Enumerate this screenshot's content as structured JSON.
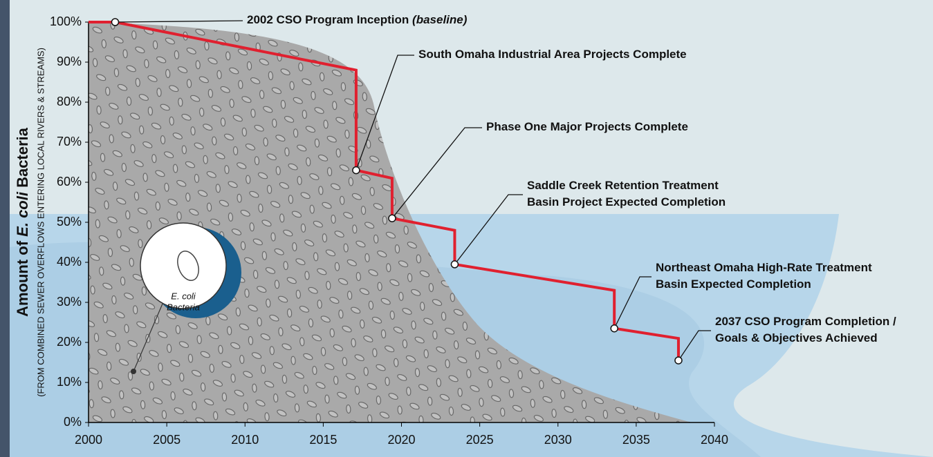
{
  "chart_data": {
    "type": "line",
    "y_label_parts": [
      "Amount of",
      "E. coli",
      "Bacteria"
    ],
    "y_sublabel": "(FROM COMBINED SEWER OVERFLOWS ENTERING LOCAL RIVERS & STREAMS)",
    "x": [
      2000,
      2001.7,
      2017.1,
      2017.1,
      2019.4,
      2019.4,
      2023.4,
      2023.4,
      2033.6,
      2033.6,
      2037.7,
      2037.7
    ],
    "values": [
      100,
      100,
      88,
      63,
      61,
      51,
      48,
      39.5,
      33,
      23.5,
      21,
      15.5
    ],
    "color": "#e0202f",
    "xlim": [
      2000,
      2040
    ],
    "xticks": [
      2000,
      2005,
      2010,
      2015,
      2020,
      2025,
      2030,
      2035,
      2040
    ],
    "ylim": [
      0,
      100
    ],
    "yticks": [
      {
        "value": 0,
        "label": "0%"
      },
      {
        "value": 10,
        "label": "10%"
      },
      {
        "value": 20,
        "label": "20%"
      },
      {
        "value": 30,
        "label": "30%"
      },
      {
        "value": 40,
        "label": "40%"
      },
      {
        "value": 50,
        "label": "50%"
      },
      {
        "value": 60,
        "label": "60%"
      },
      {
        "value": 70,
        "label": "70%"
      },
      {
        "value": 80,
        "label": "80%"
      },
      {
        "value": 90,
        "label": "90%"
      },
      {
        "value": 100,
        "label": "100%"
      }
    ],
    "milestones": [
      {
        "x": 2001.7,
        "value": 100,
        "label": [
          "2002 CSO Program Inception"
        ],
        "note": "(baseline)"
      },
      {
        "x": 2017.1,
        "value": 63,
        "label": [
          "South Omaha Industrial Area Projects Complete"
        ]
      },
      {
        "x": 2019.4,
        "value": 51,
        "label": [
          "Phase One Major Projects Complete"
        ]
      },
      {
        "x": 2023.4,
        "value": 39.5,
        "label": [
          "Saddle Creek Retention Treatment",
          "Basin Project Expected Completion"
        ]
      },
      {
        "x": 2033.6,
        "value": 23.5,
        "label": [
          "Northeast Omaha High-Rate Treatment",
          "Basin Expected Completion"
        ]
      },
      {
        "x": 2037.7,
        "value": 15.5,
        "label": [
          "2037 CSO Program Completion /",
          "Goals & Objectives Achieved"
        ]
      }
    ],
    "inset_label": [
      "E. coli",
      "Bacteria"
    ]
  }
}
